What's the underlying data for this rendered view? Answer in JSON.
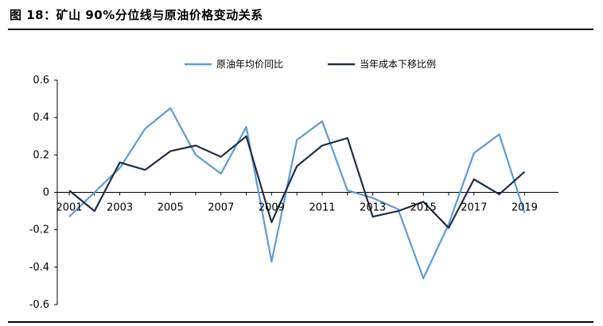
{
  "figure": {
    "title": "图 18：矿山 90%分位线与原油价格变动关系"
  },
  "chart_data": {
    "type": "line",
    "title": "",
    "xlabel": "",
    "ylabel": "",
    "ylim": [
      -0.6,
      0.6
    ],
    "yticks": [
      "0.6",
      "0.4",
      "0.2",
      "0",
      "-0.2",
      "-0.4",
      "-0.6"
    ],
    "xtick_labels": [
      "2001",
      "2003",
      "2005",
      "2007",
      "2009",
      "2011",
      "2013",
      "2015",
      "2017",
      "2019"
    ],
    "x": [
      2001,
      2002,
      2003,
      2004,
      2005,
      2006,
      2007,
      2008,
      2009,
      2010,
      2011,
      2012,
      2013,
      2014,
      2015,
      2016,
      2017,
      2018,
      2019
    ],
    "legend_position": "top-center",
    "grid": false,
    "series": [
      {
        "name": "原油年均价同比",
        "color": "#5b9bd5",
        "values": [
          -0.13,
          0.0,
          0.13,
          0.34,
          0.45,
          0.2,
          0.1,
          0.35,
          -0.37,
          0.28,
          0.38,
          0.01,
          -0.03,
          -0.09,
          -0.46,
          -0.17,
          0.21,
          0.31,
          -0.11
        ]
      },
      {
        "name": "当年成本下移比例",
        "color": "#1f2d44",
        "values": [
          0.01,
          -0.1,
          0.16,
          0.12,
          0.22,
          0.25,
          0.19,
          0.3,
          -0.16,
          0.14,
          0.25,
          0.29,
          -0.13,
          -0.1,
          -0.05,
          -0.19,
          0.07,
          -0.01,
          0.11
        ]
      }
    ]
  }
}
